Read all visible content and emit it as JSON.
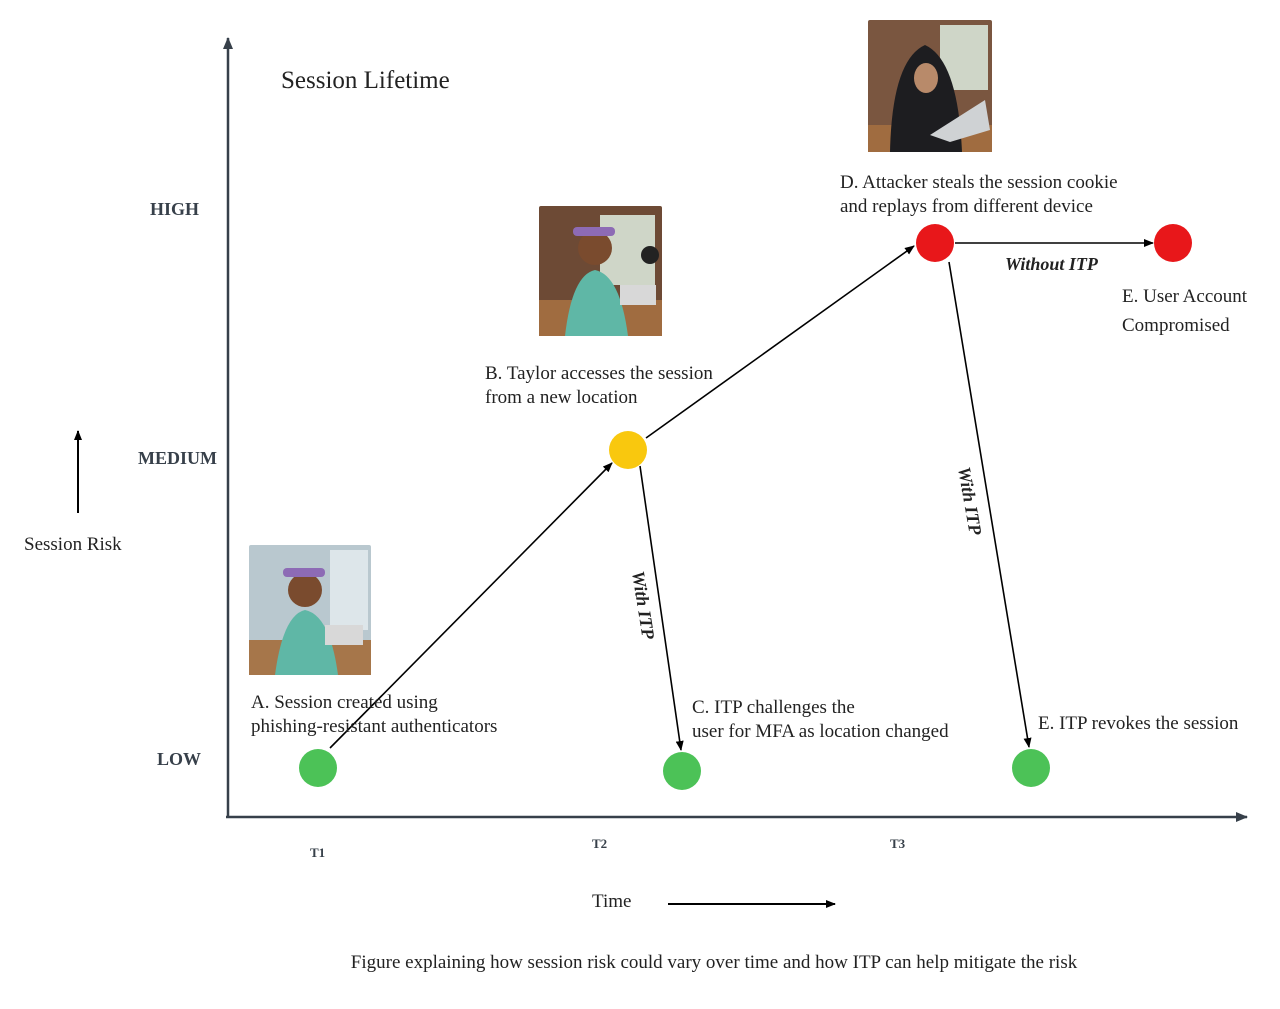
{
  "title": "Session Lifetime",
  "y_axis": {
    "label": "Session Risk",
    "levels": [
      "HIGH",
      "MEDIUM",
      "LOW"
    ]
  },
  "x_axis": {
    "label": "Time",
    "ticks": [
      "T1",
      "T2",
      "T3"
    ]
  },
  "nodes": [
    {
      "id": "A",
      "label_lines": [
        "A. Session created using",
        "phishing-resistant authenticators"
      ],
      "risk": "LOW",
      "color": "#4cc257"
    },
    {
      "id": "B",
      "label_lines": [
        "B. Taylor accesses the session",
        "from a new location"
      ],
      "risk": "MEDIUM",
      "color": "#f9c80e"
    },
    {
      "id": "C",
      "label_lines": [
        "C. ITP challenges the",
        "user for MFA as location changed"
      ],
      "risk": "LOW",
      "color": "#4cc257"
    },
    {
      "id": "D",
      "label_lines": [
        "D. Attacker steals the session cookie",
        "and replays from different device"
      ],
      "risk": "HIGH",
      "color": "#e8171a"
    },
    {
      "id": "E1",
      "label_lines": [
        "E. User Account",
        "Compromised"
      ],
      "risk": "HIGH",
      "color": "#e8171a"
    },
    {
      "id": "E2",
      "label_lines": [
        "E. ITP revokes the session"
      ],
      "risk": "LOW",
      "color": "#4cc257"
    }
  ],
  "edges": [
    {
      "from": "A",
      "to": "B",
      "label": ""
    },
    {
      "from": "B",
      "to": "D",
      "label": ""
    },
    {
      "from": "B",
      "to": "C",
      "label": "With ITP"
    },
    {
      "from": "D",
      "to": "E1",
      "label": "Without ITP"
    },
    {
      "from": "D",
      "to": "E2",
      "label": "With ITP"
    }
  ],
  "caption": "Figure explaining how session risk could vary over time and how ITP can help mitigate the risk"
}
